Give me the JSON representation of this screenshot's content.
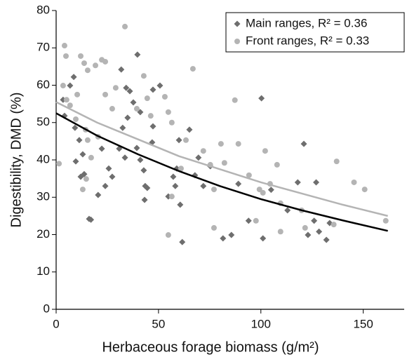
{
  "chart_data": {
    "type": "scatter",
    "xlabel": "Herbaceous forage biomass (g/m²)",
    "ylabel": "Digestibility, DMD (%)",
    "xlim": [
      0,
      170
    ],
    "ylim": [
      0,
      80
    ],
    "xticks": [
      0,
      50,
      100,
      150
    ],
    "yticks": [
      0,
      10,
      20,
      30,
      40,
      50,
      60,
      70,
      80
    ],
    "legend": "top-right",
    "series": [
      {
        "name": "Main ranges, R² = 0.36",
        "color": "#6e6e6e",
        "marker": "diamond",
        "x": [
          8.6,
          6.8,
          3.4,
          4.1,
          9.2,
          11.3,
          9.6,
          13,
          13.7,
          12,
          20.5,
          16.1,
          24,
          22.3,
          25.7,
          27.4,
          17,
          31.8,
          34.2,
          36,
          37.7,
          34.9,
          32.5,
          30.8,
          33.6,
          39.4,
          39.7,
          41.1,
          42.8,
          43.2,
          44.5,
          43.5,
          41.1,
          47.3,
          50.7,
          47.3,
          46.9,
          54.8,
          57.2,
          58.2,
          60,
          58.9,
          60.6,
          61.6,
          65.1,
          67.8,
          69.5,
          71.9,
          75.3,
          81.5,
          85.6,
          89,
          100.3,
          101,
          94,
          105,
          113,
          118,
          127,
          121,
          123,
          126,
          132,
          133.6,
          128.4
        ],
        "values": [
          62.2,
          59.9,
          56.1,
          51.8,
          48.6,
          45.3,
          39.6,
          41.5,
          36.2,
          35.5,
          30.6,
          24.2,
          33,
          43,
          37.7,
          35.5,
          24,
          64.2,
          59.3,
          58.4,
          55.4,
          51.3,
          48.6,
          43,
          40.6,
          43.2,
          68.2,
          52.8,
          37.2,
          29.3,
          32.5,
          33,
          40,
          58.8,
          59.9,
          49,
          44.7,
          30.2,
          35.5,
          33,
          45.3,
          37.7,
          28,
          18,
          48.1,
          35.9,
          40.6,
          33,
          38.3,
          19,
          19.9,
          33.6,
          56.5,
          19,
          23.7,
          32,
          26.5,
          34,
          34,
          44.3,
          19.9,
          23.7,
          18.6,
          23.1,
          20.8
        ],
        "trend": {
          "color": "#000000",
          "x": [
            0,
            20,
            40,
            60,
            80,
            100,
            120,
            140,
            162
          ],
          "values": [
            52.5,
            46.5,
            41.5,
            37,
            33,
            29.5,
            26.5,
            23.8,
            21
          ]
        }
      },
      {
        "name": "Front ranges, R² = 0.33",
        "color": "#b4b4b4",
        "marker": "circle",
        "x": [
          1.4,
          4.1,
          4.8,
          3.4,
          5.1,
          6.8,
          10.3,
          12,
          13.7,
          15.4,
          19.2,
          22.3,
          24,
          9.6,
          14.4,
          15.4,
          20.5,
          17.1,
          14.7,
          13,
          24,
          27.4,
          29.1,
          33.6,
          39.4,
          42.8,
          44.5,
          46.2,
          53.1,
          54.8,
          56.5,
          61,
          63.4,
          66.8,
          71.9,
          75.3,
          77.1,
          77.1,
          80.5,
          82.2,
          89,
          87.3,
          94.2,
          99.3,
          97.6,
          101,
          102.1,
          107.9,
          109.6,
          104.5,
          119.9,
          121.6,
          109.6,
          135.6,
          137,
          145.5,
          150.7,
          161,
          54.8,
          56.5
        ],
        "values": [
          39,
          70.6,
          67.8,
          59.9,
          56.1,
          54.6,
          57.5,
          67.8,
          65.9,
          64,
          65.3,
          66.8,
          66.3,
          50.9,
          48.1,
          45.3,
          46.2,
          40.6,
          34.9,
          32.1,
          57.5,
          53.7,
          59.3,
          75.7,
          53.7,
          62.5,
          56.5,
          51.8,
          56.9,
          52.8,
          50,
          37.7,
          45.3,
          64.4,
          42.4,
          38.7,
          32.1,
          21.8,
          44.3,
          39.2,
          44.3,
          56,
          35.9,
          32.1,
          23.7,
          31.2,
          42.4,
          38.7,
          28.4,
          33.6,
          26.5,
          21.8,
          20.8,
          22.7,
          39.6,
          34,
          32.1,
          23.7,
          19.9,
          30.2
        ],
        "trend": {
          "color": "#b4b4b4",
          "x": [
            0,
            20,
            40,
            60,
            80,
            100,
            120,
            140,
            162
          ],
          "values": [
            55.5,
            50,
            45.5,
            41,
            37.5,
            34,
            31,
            28,
            25
          ]
        }
      }
    ]
  }
}
